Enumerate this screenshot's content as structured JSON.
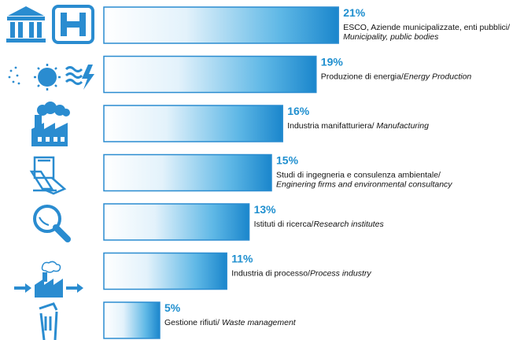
{
  "colors": {
    "accent": "#1f8fcf",
    "bar_edge": "#2a8cd0",
    "icon": "#2a8cd0"
  },
  "chart_data": {
    "type": "bar",
    "orientation": "horizontal",
    "grid": false,
    "legend": "none",
    "xlim": [
      0,
      21
    ],
    "categories": [
      "ESCO, Aziende municipalizzate, enti pubblici/ Municipality, public bodies",
      "Produzione di energia/Energy Production",
      "Industria manifatturiera/ Manufacturing",
      "Studi di ingegneria e consulenza ambientale/ Enginering firms and environmental consultancy",
      "Istituti di ricerca/Research institutes",
      "Industria di processo/Process industry",
      "Gestione rifiuti/ Waste management"
    ],
    "values": [
      21,
      19,
      16,
      15,
      13,
      11,
      5
    ],
    "items": [
      {
        "pct": "21%",
        "label_lines": [
          {
            "it": "ESCO, Aziende municipalizzate, enti pubblici/",
            "en": ""
          },
          {
            "it": "",
            "en": "Municipality, public bodies"
          }
        ],
        "icon": "municipality-hospital-icon"
      },
      {
        "pct": "19%",
        "label_lines": [
          {
            "it": "Produzione di energia/",
            "en": "Energy  Production"
          }
        ],
        "icon": "energy-sun-wind-icon"
      },
      {
        "pct": "16%",
        "label_lines": [
          {
            "it": "Industria manifatturiera/ ",
            "en": "Manufacturing"
          }
        ],
        "icon": "factory-icon"
      },
      {
        "pct": "15%",
        "label_lines": [
          {
            "it": "Studi di ingegneria e consulenza ambientale/",
            "en": ""
          },
          {
            "it": "",
            "en": "Enginering firms and environmental consultancy"
          }
        ],
        "icon": "engineering-desk-icon"
      },
      {
        "pct": "13%",
        "label_lines": [
          {
            "it": "Istituti di ricerca/",
            "en": "Research institutes"
          }
        ],
        "icon": "magnifier-icon"
      },
      {
        "pct": "11%",
        "label_lines": [
          {
            "it": "Industria di processo/",
            "en": "Process industry"
          }
        ],
        "icon": "process-industry-icon"
      },
      {
        "pct": "5%",
        "label_lines": [
          {
            "it": "Gestione rifiuti/ ",
            "en": "Waste management"
          }
        ],
        "icon": "waste-bin-icon"
      }
    ]
  }
}
